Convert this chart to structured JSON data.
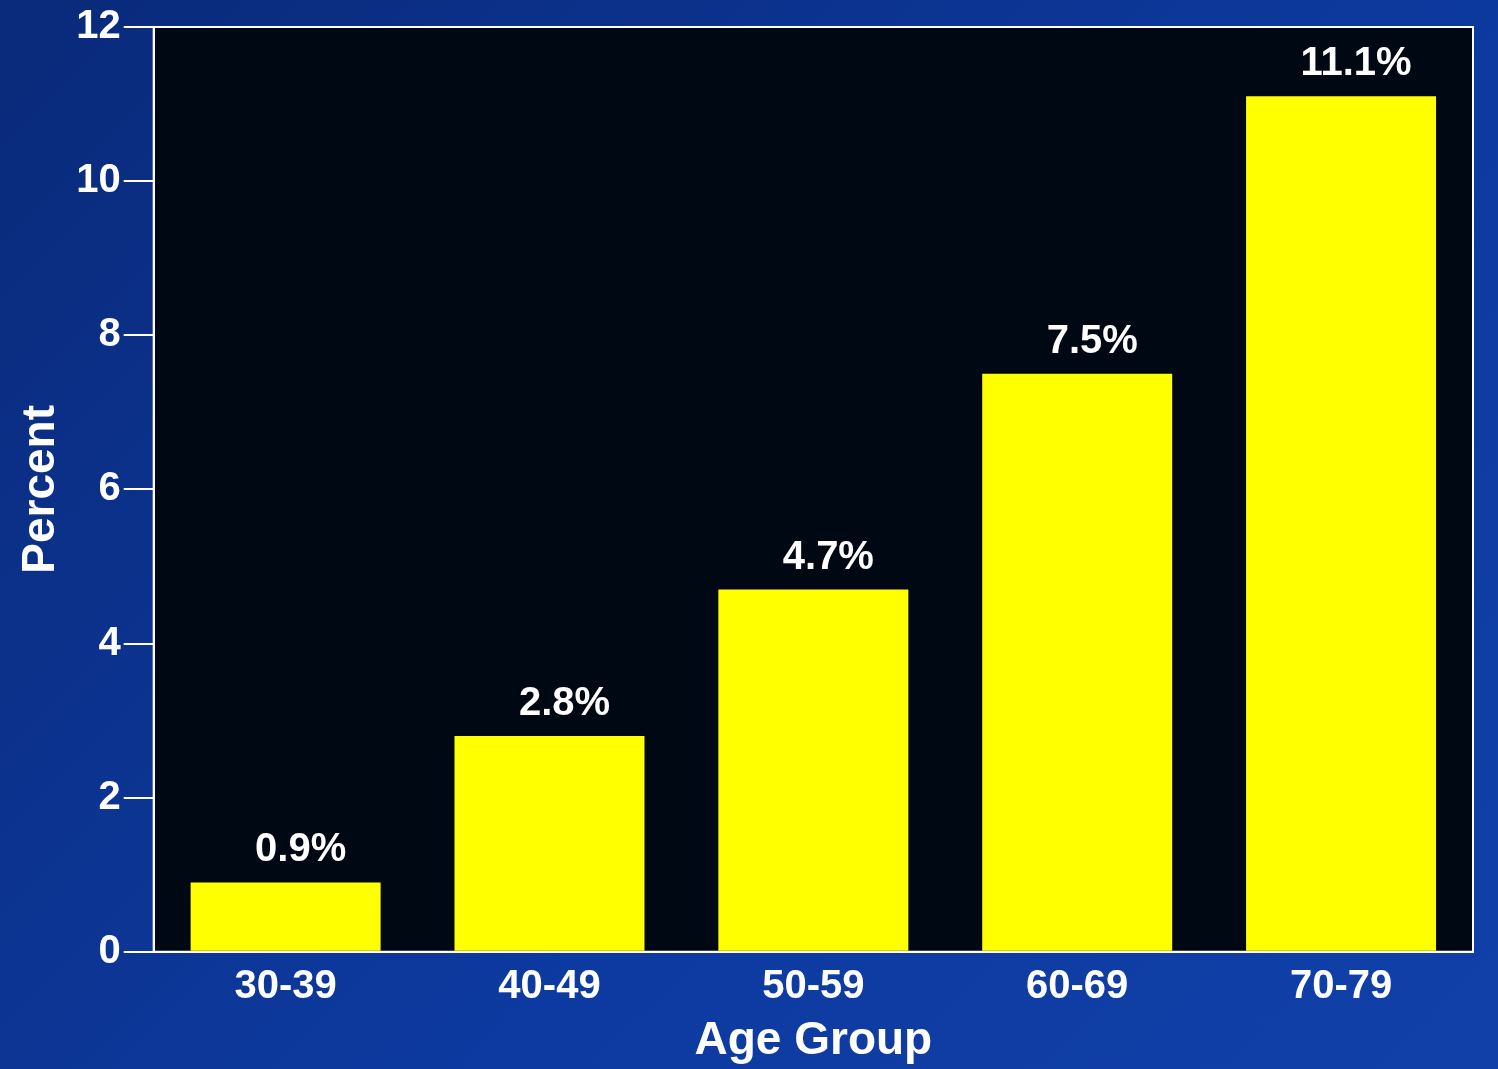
{
  "chart_data": {
    "type": "bar",
    "xlabel": "Age Group",
    "ylabel": "Percent",
    "categories": [
      "30-39",
      "40-49",
      "50-59",
      "60-69",
      "70-79"
    ],
    "values": [
      0.9,
      2.8,
      4.7,
      7.5,
      11.1
    ],
    "color": "#ffff00",
    "value_labels": [
      "0.9%",
      "2.8%",
      "4.7%",
      "7.5%",
      "11.1%"
    ],
    "ylim": [
      0,
      12
    ],
    "yticks": [
      0,
      2,
      4,
      6,
      8,
      10,
      12
    ],
    "grid": false,
    "legend": false
  }
}
